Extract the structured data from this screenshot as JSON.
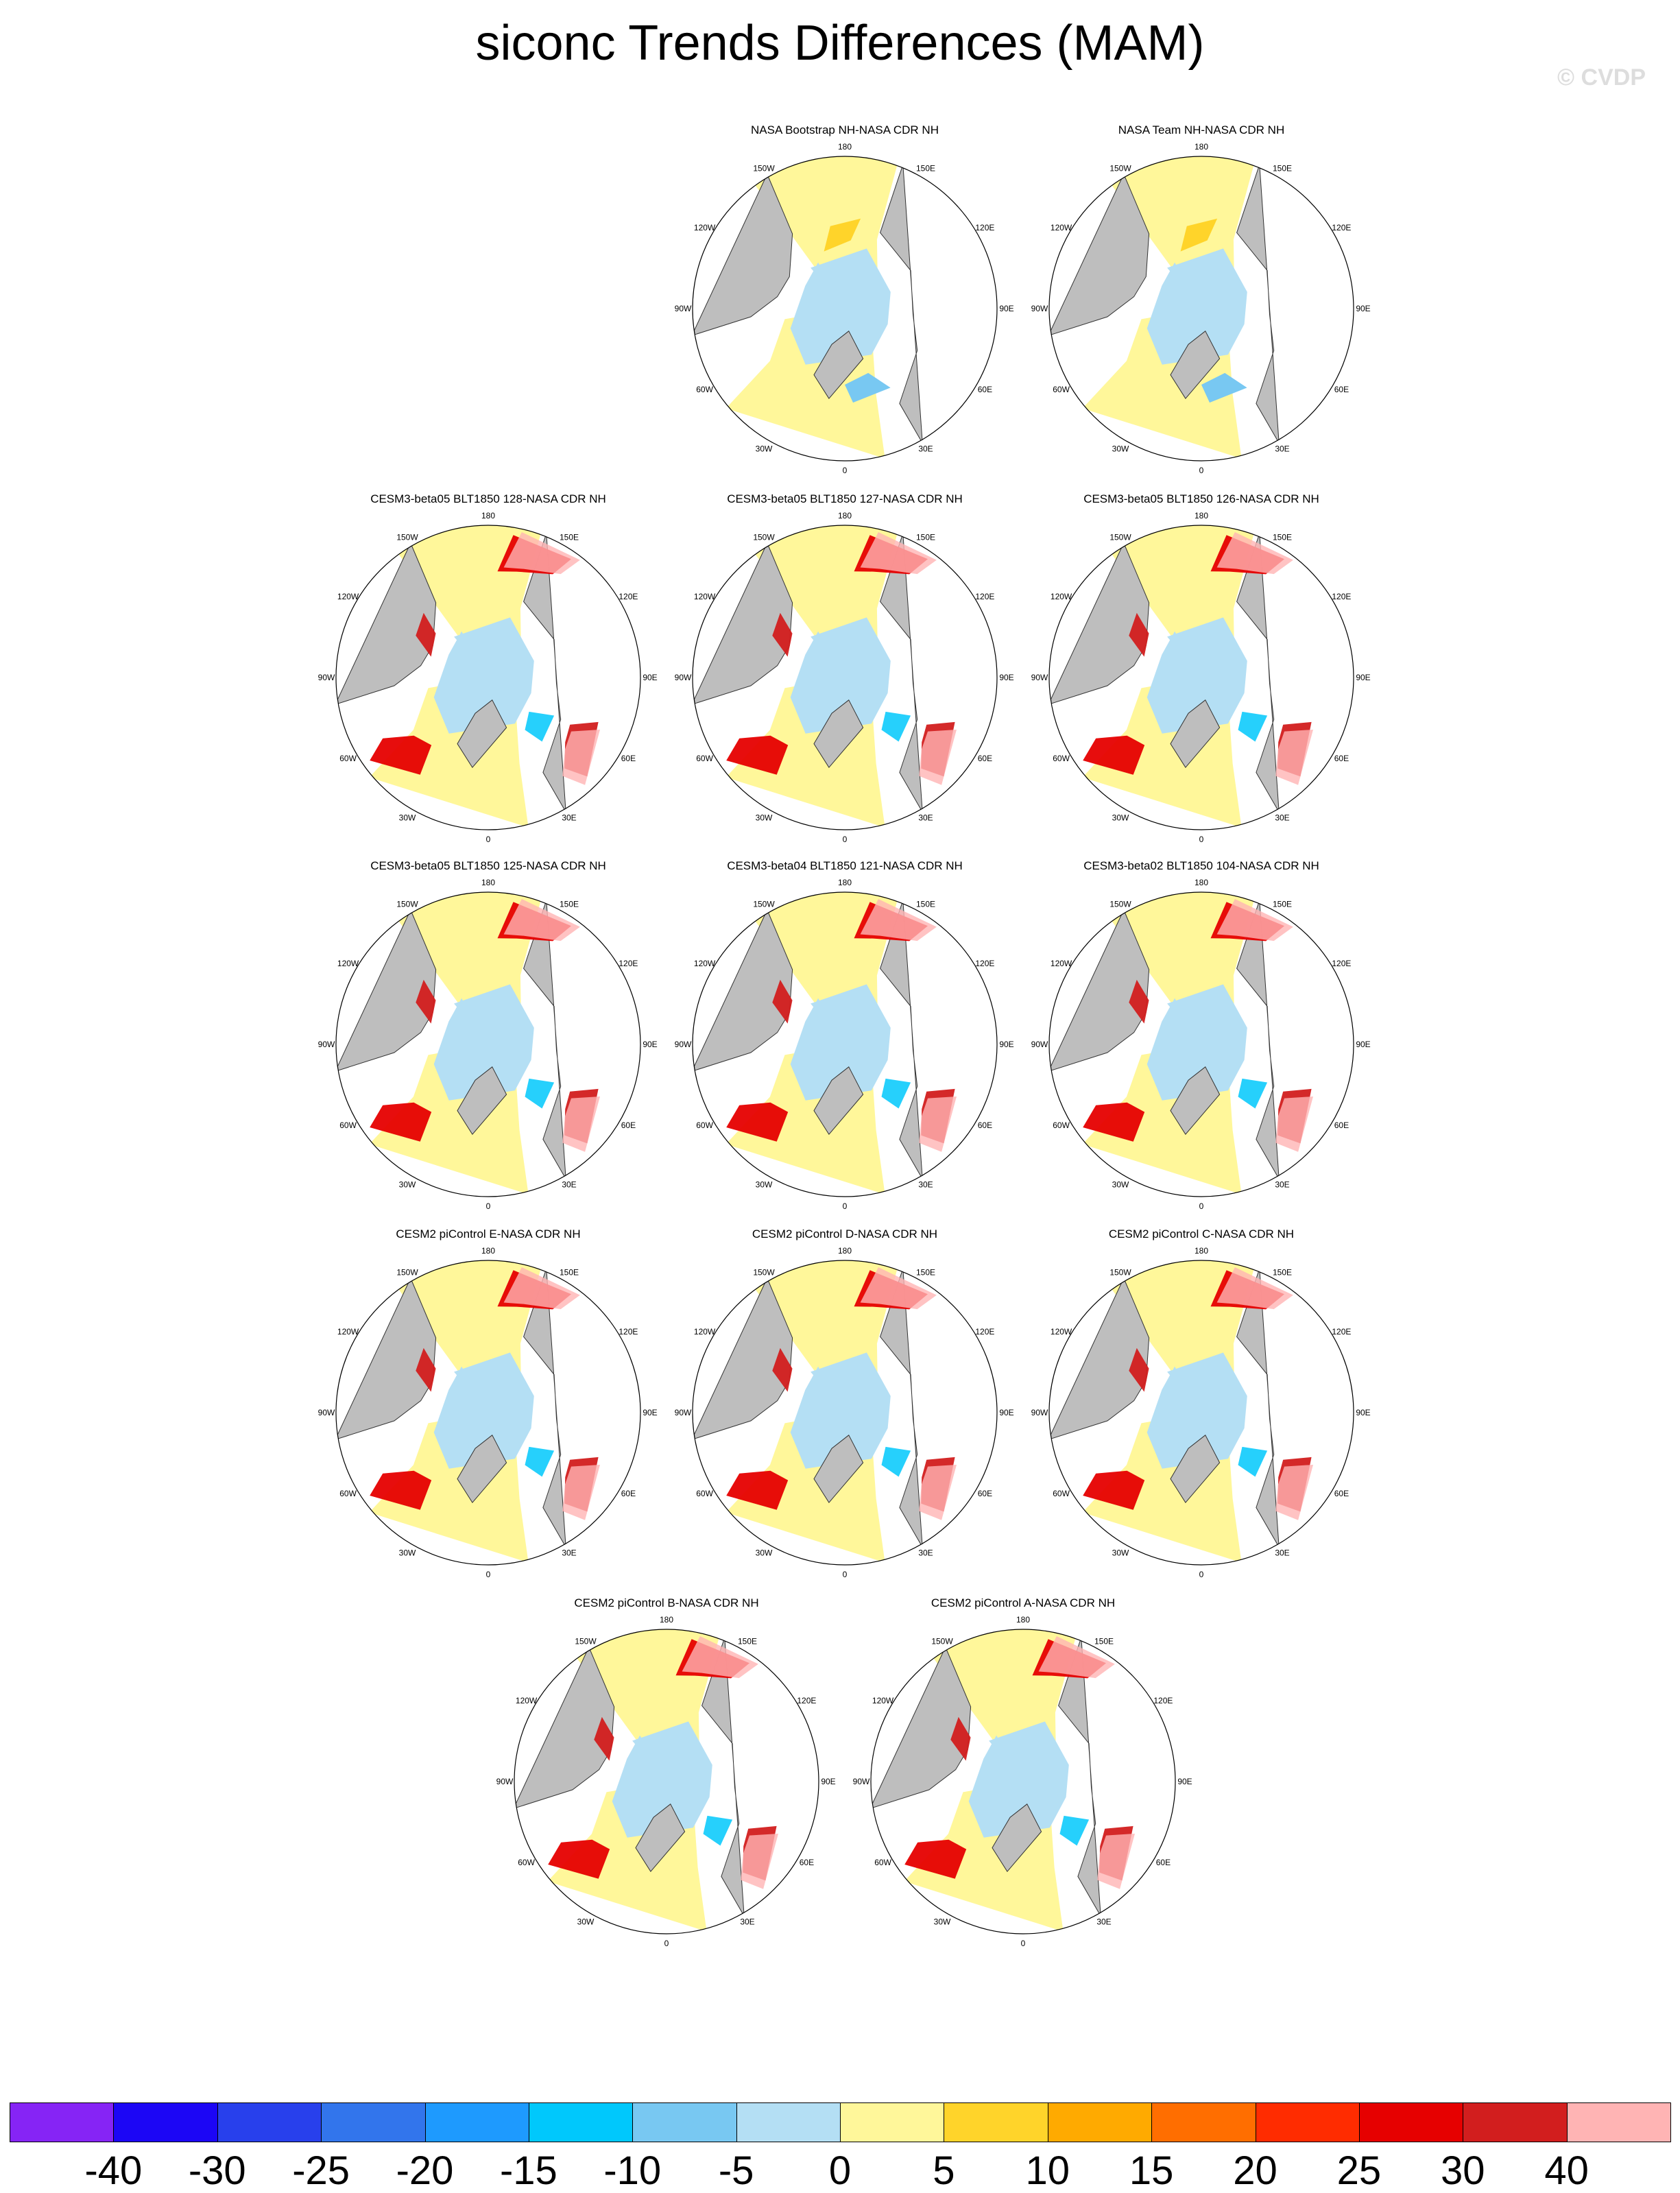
{
  "title": "siconc Trends Differences (MAM)",
  "watermark": "© CVDP",
  "longitude_labels": [
    "180",
    "150E",
    "120E",
    "90E",
    "60E",
    "30E",
    "0",
    "30W",
    "60W",
    "90W",
    "120W",
    "150W"
  ],
  "panels": [
    {
      "title": "NASA Bootstrap NH-NASA CDR NH"
    },
    {
      "title": "NASA Team NH-NASA CDR NH"
    },
    {
      "title": "CESM3-beta05 BLT1850 128-NASA CDR NH"
    },
    {
      "title": "CESM3-beta05 BLT1850 127-NASA CDR NH"
    },
    {
      "title": "CESM3-beta05 BLT1850 126-NASA CDR NH"
    },
    {
      "title": "CESM3-beta05 BLT1850 125-NASA CDR NH"
    },
    {
      "title": "CESM3-beta04 BLT1850 121-NASA CDR NH"
    },
    {
      "title": "CESM3-beta02 BLT1850 104-NASA CDR NH"
    },
    {
      "title": "CESM2 piControl E-NASA CDR NH"
    },
    {
      "title": "CESM2 piControl D-NASA CDR NH"
    },
    {
      "title": "CESM2 piControl C-NASA CDR NH"
    },
    {
      "title": "CESM2 piControl B-NASA CDR NH"
    },
    {
      "title": "CESM2 piControl A-NASA CDR NH"
    }
  ],
  "colorbar": {
    "labels": [
      "-40",
      "-30",
      "-25",
      "-20",
      "-15",
      "-10",
      "-5",
      "0",
      "5",
      "10",
      "15",
      "20",
      "25",
      "30",
      "40"
    ],
    "colors": [
      "#8624f5",
      "#1c06f5",
      "#2840ec",
      "#3275ec",
      "#1e9afe",
      "#00c8fc",
      "#78c8f2",
      "#b4dff4",
      "#fff79a",
      "#ffd42a",
      "#ffaa00",
      "#ff6e00",
      "#ff2c00",
      "#e60000",
      "#d21e1e",
      "#ffb4b4"
    ]
  },
  "map_colors": {
    "land": "#bebebe",
    "coast": "#333333",
    "ocean_ice_free": "#ffffff"
  }
}
